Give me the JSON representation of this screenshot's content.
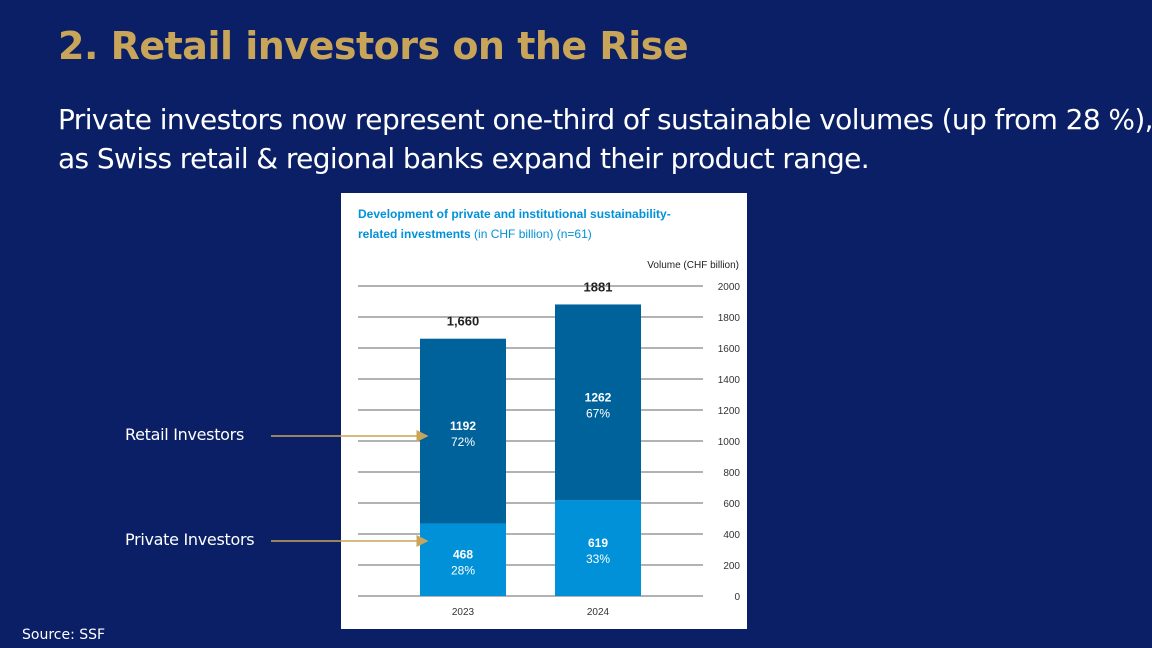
{
  "slide": {
    "title": "2. Retail investors on the Rise",
    "subtitle_line1": "Private investors now represent one-third of sustainable volumes (up from 28 %),",
    "subtitle_line2": "as Swiss retail & regional banks expand their product range.",
    "source": "Source: SSF"
  },
  "annotations": {
    "retail": "Retail Investors",
    "private": "Private Investors"
  },
  "colors": {
    "background": "#0a1f66",
    "title": "#c9a55a",
    "institutional": "#00629b",
    "private": "#0091d9",
    "chart_title": "#0091d9",
    "arrow": "#c9a55a"
  },
  "chart_data": {
    "type": "bar",
    "stacked": true,
    "title_bold": "Development of private and institutional sustainability-related investments",
    "title_line1": "Development of private and institutional sustainability-",
    "title_line2_bold": "related investments",
    "title_line2_rest": " (in CHF billion) (n=61)",
    "ylabel": "Volume (CHF billion)",
    "ylim": [
      0,
      2000
    ],
    "yticks": [
      0,
      200,
      400,
      600,
      800,
      1000,
      1200,
      1400,
      1600,
      1800,
      2000
    ],
    "categories": [
      "2023",
      "2024"
    ],
    "totals": [
      "1,660",
      "1881"
    ],
    "series": [
      {
        "name": "Private Investors",
        "values": [
          468,
          619
        ],
        "labels": [
          "468",
          "619"
        ],
        "pct": [
          "28%",
          "33%"
        ]
      },
      {
        "name": "Retail Investors",
        "values": [
          1192,
          1262
        ],
        "labels": [
          "1192",
          "1262"
        ],
        "pct": [
          "72%",
          "67%"
        ]
      }
    ]
  }
}
